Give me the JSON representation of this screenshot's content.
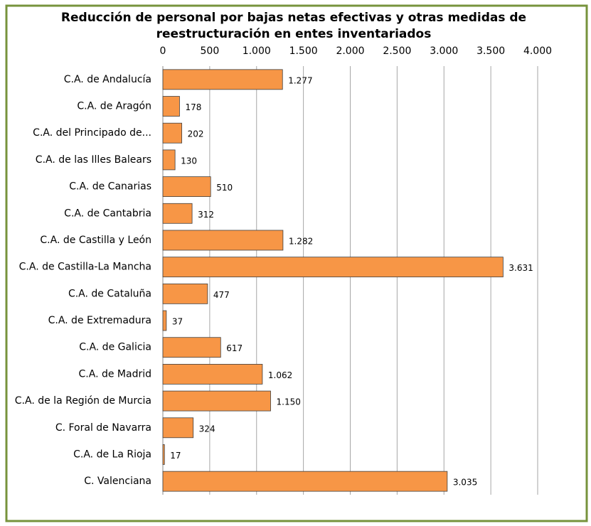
{
  "chart_data": {
    "type": "bar",
    "orientation": "horizontal",
    "title": [
      "Reducción de personal por bajas netas efectivas y otras medidas de",
      "reestructuración en entes inventariados"
    ],
    "categories": [
      "C.A. de Andalucía",
      "C.A. de Aragón",
      "C.A. del Principado de...",
      "C.A. de las Illes Balears",
      "C.A. de Canarias",
      "C.A. de Cantabria",
      "C.A. de Castilla y León",
      "C.A. de Castilla-La Mancha",
      "C.A. de Cataluña",
      "C.A. de Extremadura",
      "C.A. de Galicia",
      "C.A. de Madrid",
      "C.A. de la Región de Murcia",
      "C. Foral de Navarra",
      "C.A. de La Rioja",
      "C. Valenciana"
    ],
    "values": [
      1277,
      178,
      202,
      130,
      510,
      312,
      1282,
      3631,
      477,
      37,
      617,
      1062,
      1150,
      324,
      17,
      3035
    ],
    "value_labels": [
      "1.277",
      "178",
      "202",
      "130",
      "510",
      "312",
      "1.282",
      "3.631",
      "477",
      "37",
      "617",
      "1.062",
      "1.150",
      "324",
      "17",
      "3.035"
    ],
    "color": "#f79646",
    "xlim": [
      0,
      4000
    ],
    "xticks": [
      0,
      500,
      {
        "value": 1000,
        "label": "1.000"
      },
      {
        "value": 1500,
        "label": "1.500"
      },
      {
        "value": 2000,
        "label": "2.000"
      },
      {
        "value": 2500,
        "label": "2.500"
      },
      {
        "value": 3000,
        "label": "3.000"
      },
      {
        "value": 3500,
        "label": "3.500"
      },
      {
        "value": 4000,
        "label": "4.000"
      }
    ],
    "grid": true
  }
}
